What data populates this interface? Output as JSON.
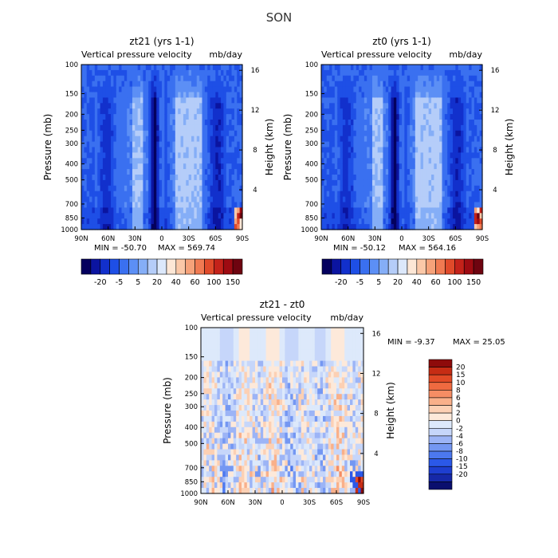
{
  "title": "SON",
  "colors": {
    "top_cmap": [
      "#04005e",
      "#0b14a0",
      "#1230cc",
      "#1e4fe6",
      "#3a70f0",
      "#5c8ff5",
      "#85aef7",
      "#b5cdf9",
      "#dce8fb",
      "#fde7d6",
      "#fbc8a8",
      "#f6a27a",
      "#f07a52",
      "#e04a2a",
      "#c4221a",
      "#9e0b12",
      "#6e0410"
    ],
    "diff_cmap": [
      "#0a0f6e",
      "#1628a8",
      "#1e3ed0",
      "#2b58e8",
      "#4c78ef",
      "#7497f2",
      "#9cb4f6",
      "#c6d6fa",
      "#dde9fb",
      "#fde9da",
      "#fcd0b4",
      "#f9b08a",
      "#f58d64",
      "#ef6a40",
      "#e14a26",
      "#c62c14",
      "#8e0b0b"
    ]
  },
  "chart_data": [
    {
      "type": "heatmap",
      "name": "zt21",
      "title": "zt21 (yrs 1-1)",
      "subtitle_left": "Vertical pressure velocity",
      "subtitle_right": "mb/day",
      "ylabel": "Pressure (mb)",
      "ylabel_right": "Height (km)",
      "xticks": [
        "90N",
        "60N",
        "30N",
        "0",
        "30S",
        "60S",
        "90S"
      ],
      "yticks": [
        "100",
        "150",
        "200",
        "250",
        "300",
        "400",
        "500",
        "700",
        "850",
        "1000"
      ],
      "yticks_right": [
        "16",
        "12",
        "8",
        "4"
      ],
      "min_text": "MIN = -50.70",
      "max_text": "MAX = 569.74",
      "xlim": [
        90,
        -90
      ],
      "ylim": [
        1000,
        100
      ],
      "colorbar_labels": [
        "-20",
        "-5",
        "5",
        "20",
        "40",
        "60",
        "100",
        "150"
      ]
    },
    {
      "type": "heatmap",
      "name": "zt0",
      "title": "zt0 (yrs 1-1)",
      "subtitle_left": "Vertical pressure velocity",
      "subtitle_right": "mb/day",
      "ylabel": "Pressure (mb)",
      "ylabel_right": "Height (km)",
      "xticks": [
        "90N",
        "60N",
        "30N",
        "0",
        "30S",
        "60S",
        "90S"
      ],
      "yticks": [
        "100",
        "150",
        "200",
        "250",
        "300",
        "400",
        "500",
        "700",
        "850",
        "1000"
      ],
      "yticks_right": [
        "16",
        "12",
        "8",
        "4"
      ],
      "min_text": "MIN = -50.12",
      "max_text": "MAX = 564.16",
      "xlim": [
        90,
        -90
      ],
      "ylim": [
        1000,
        100
      ],
      "colorbar_labels": [
        "-20",
        "-5",
        "5",
        "20",
        "40",
        "60",
        "100",
        "150"
      ]
    },
    {
      "type": "heatmap",
      "name": "zt21 - zt0",
      "title": "zt21 - zt0",
      "subtitle_left": "Vertical pressure velocity",
      "subtitle_right": "mb/day",
      "ylabel": "Pressure (mb)",
      "ylabel_right": "Height (km)",
      "xticks": [
        "90N",
        "60N",
        "30N",
        "0",
        "30S",
        "60S",
        "90S"
      ],
      "yticks": [
        "100",
        "150",
        "200",
        "250",
        "300",
        "400",
        "500",
        "700",
        "850",
        "1000"
      ],
      "yticks_right": [
        "16",
        "12",
        "8",
        "4"
      ],
      "min_text": "MIN =  -9.37",
      "max_text": "MAX =  25.05",
      "xlim": [
        90,
        -90
      ],
      "ylim": [
        1000,
        100
      ],
      "colorbar_labels": [
        "20",
        "15",
        "10",
        "8",
        "6",
        "4",
        "2",
        "0",
        "-2",
        "-4",
        "-6",
        "-8",
        "-10",
        "-15",
        "-20"
      ]
    }
  ]
}
